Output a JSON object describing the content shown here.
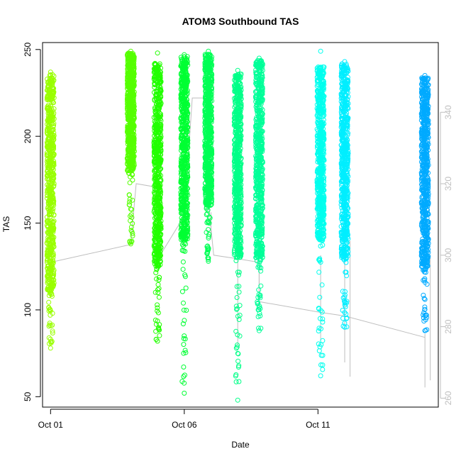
{
  "chart_data": {
    "type": "scatter",
    "title": "ATOM3 Southbound TAS",
    "xlabel": "Date",
    "ylabel": "TAS",
    "x_ticks": [
      "Oct 01",
      "Oct 06",
      "Oct 11"
    ],
    "x_range_days": [
      30.7,
      45.5
    ],
    "x_tick_days": [
      31,
      36,
      41
    ],
    "ylim": [
      44,
      254
    ],
    "y_ticks": [
      50,
      100,
      150,
      200,
      250
    ],
    "y2lim": [
      257.5,
      359.5
    ],
    "y2_ticks": [
      260,
      280,
      300,
      320,
      340
    ],
    "y2_color": "#bebebe",
    "grid": false,
    "legend": "none",
    "series": [
      {
        "x_day": 31.0,
        "ymin": 78,
        "ymax": 237,
        "dense_low": 110,
        "dense_high": 236,
        "color": "#99ff00"
      },
      {
        "x_day": 34.0,
        "ymin": 138,
        "ymax": 249,
        "dense_low": 180,
        "dense_high": 248,
        "color": "#55ff00"
      },
      {
        "x_day": 35.0,
        "ymin": 82,
        "ymax": 248,
        "dense_low": 125,
        "dense_high": 242,
        "color": "#22ff00"
      },
      {
        "x_day": 36.0,
        "ymin": 52,
        "ymax": 247,
        "dense_low": 140,
        "dense_high": 246,
        "color": "#00ff33"
      },
      {
        "x_day": 36.9,
        "ymin": 128,
        "ymax": 249,
        "dense_low": 160,
        "dense_high": 248,
        "color": "#00ff55"
      },
      {
        "x_day": 38.0,
        "ymin": 48,
        "ymax": 238,
        "dense_low": 130,
        "dense_high": 236,
        "color": "#00ff88"
      },
      {
        "x_day": 38.8,
        "ymin": 88,
        "ymax": 245,
        "dense_low": 130,
        "dense_high": 244,
        "color": "#00ff99"
      },
      {
        "x_day": 41.1,
        "ymin": 62,
        "ymax": 249,
        "dense_low": 140,
        "dense_high": 240,
        "color": "#00ffee"
      },
      {
        "x_day": 42.0,
        "ymin": 90,
        "ymax": 243,
        "dense_low": 130,
        "dense_high": 242,
        "color": "#00eeff"
      },
      {
        "x_day": 45.0,
        "ymin": 88,
        "ymax": 235,
        "dense_low": 125,
        "dense_high": 234,
        "color": "#00aaff"
      }
    ],
    "secondary_series": {
      "name": "",
      "color": "#bebebe",
      "points": [
        [
          31.0,
          298
        ],
        [
          34.0,
          303
        ],
        [
          34.2,
          320
        ],
        [
          35.0,
          319
        ],
        [
          35.1,
          300
        ],
        [
          36.0,
          311
        ],
        [
          36.3,
          344
        ],
        [
          36.9,
          344
        ],
        [
          36.9,
          315
        ],
        [
          37.1,
          300
        ],
        [
          38.0,
          299
        ],
        [
          38.8,
          298
        ],
        [
          38.8,
          287
        ],
        [
          41.1,
          284
        ],
        [
          42.0,
          283
        ],
        [
          45.0,
          277
        ]
      ],
      "spikes": [
        {
          "x": 37.0,
          "low": 305,
          "high": 312
        },
        {
          "x": 38.0,
          "low": 275,
          "high": 348
        },
        {
          "x": 38.8,
          "low": 285,
          "high": 299
        },
        {
          "x": 41.1,
          "low": 276,
          "high": 300
        },
        {
          "x": 42.0,
          "low": 270,
          "high": 306
        },
        {
          "x": 42.2,
          "low": 266,
          "high": 304
        },
        {
          "x": 45.0,
          "low": 263,
          "high": 278
        },
        {
          "x": 45.2,
          "low": 265,
          "high": 300
        }
      ]
    }
  }
}
